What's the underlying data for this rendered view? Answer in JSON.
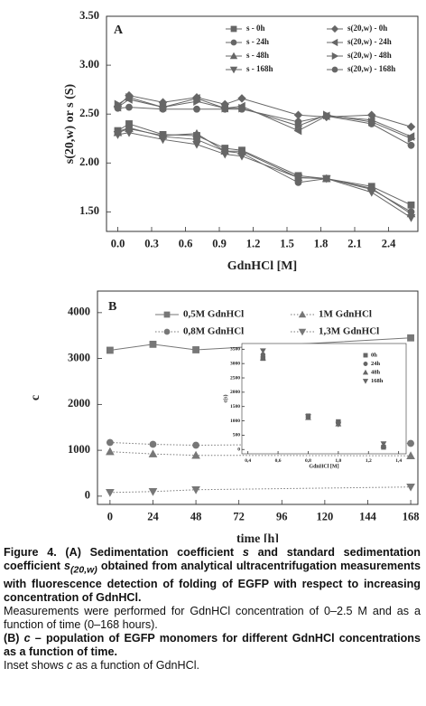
{
  "chart_data": [
    {
      "type": "line",
      "label": "A",
      "xlabel": "GdnHCl [M]",
      "ylabel": "s(20,w) or s (S)",
      "x": [
        0,
        0.1,
        0.4,
        0.7,
        0.95,
        1.1,
        1.6,
        1.85,
        2.25,
        2.6
      ],
      "xlim": [
        -0.1,
        2.66
      ],
      "xticks": [
        {
          "value": 0,
          "label": "0.0"
        },
        0.3,
        0.6,
        0.9,
        1.2,
        1.5,
        1.8,
        2.1,
        2.4
      ],
      "ylim": [
        1.3,
        3.5
      ],
      "yticks": [
        {
          "value": 1.5,
          "label": "1.50"
        },
        {
          "value": 2,
          "label": "2.00"
        },
        {
          "value": 2.5,
          "label": "2.50"
        },
        {
          "value": 3,
          "label": "3.00"
        },
        {
          "value": 3.5,
          "label": "3.50"
        }
      ],
      "legend": "top",
      "legend_columns": 2,
      "series": [
        {
          "name": "s - 0h",
          "color": "#666666",
          "marker": "square",
          "line_style": "solid",
          "values": [
            2.33,
            2.4,
            2.29,
            2.28,
            2.15,
            2.13,
            1.87,
            1.84,
            1.76,
            1.57
          ]
        },
        {
          "name": "s - 24h",
          "color": "#666666",
          "marker": "circle",
          "line_style": "solid",
          "values": [
            2.32,
            2.36,
            2.27,
            2.24,
            2.12,
            2.1,
            1.8,
            1.84,
            1.73,
            1.5
          ]
        },
        {
          "name": "s - 48h",
          "color": "#666666",
          "marker": "triangle-up",
          "line_style": "solid",
          "values": [
            2.31,
            2.35,
            2.28,
            2.3,
            2.12,
            2.12,
            1.85,
            1.84,
            1.74,
            1.48
          ]
        },
        {
          "name": "s - 168h",
          "color": "#666666",
          "marker": "triangle-down",
          "line_style": "solid",
          "values": [
            2.29,
            2.31,
            2.24,
            2.19,
            2.09,
            2.07,
            1.85,
            1.84,
            1.7,
            1.44
          ]
        },
        {
          "name": "s(20,w) - 0h",
          "color": "#666666",
          "marker": "diamond",
          "line_style": "solid",
          "values": [
            2.58,
            2.69,
            2.62,
            2.67,
            2.6,
            2.66,
            2.49,
            2.47,
            2.49,
            2.37
          ]
        },
        {
          "name": "s(20,w) - 24h",
          "color": "#666666",
          "marker": "triangle-left",
          "line_style": "solid",
          "values": [
            2.57,
            2.65,
            2.57,
            2.66,
            2.56,
            2.58,
            2.33,
            2.48,
            2.44,
            2.27
          ]
        },
        {
          "name": "s(20,w) - 48h",
          "color": "#666666",
          "marker": "triangle-right",
          "line_style": "solid",
          "values": [
            2.6,
            2.67,
            2.57,
            2.63,
            2.56,
            2.56,
            2.38,
            2.49,
            2.42,
            2.25
          ]
        },
        {
          "name": "s(20,w) - 168h",
          "color": "#666666",
          "marker": "circle",
          "line_style": "solid",
          "values": [
            2.56,
            2.57,
            2.55,
            2.55,
            2.55,
            2.55,
            2.42,
            2.48,
            2.4,
            2.18
          ]
        }
      ]
    },
    {
      "type": "line",
      "label": "B",
      "xlabel": "time [h]",
      "ylabel": "c",
      "x": [
        0,
        24,
        48,
        168
      ],
      "xlim": [
        -7,
        172
      ],
      "xticks": [
        0,
        24,
        48,
        72,
        96,
        120,
        144,
        168
      ],
      "ylim": [
        -180,
        4470
      ],
      "yticks": [
        0,
        1000,
        2000,
        3000,
        4000
      ],
      "legend": "top",
      "legend_columns": 2,
      "series": [
        {
          "name": "0,5M GdnHCl",
          "color": "#777777",
          "marker": "square",
          "line_style": "solid",
          "values": [
            3180,
            3310,
            3190,
            3450
          ]
        },
        {
          "name": "0,8M GdnHCl",
          "color": "#777777",
          "marker": "circle",
          "line_style": "dotted",
          "values": [
            1170,
            1130,
            1110,
            1150
          ]
        },
        {
          "name": "1M GdnHCl",
          "color": "#777777",
          "marker": "triangle-up",
          "line_style": "dotted",
          "values": [
            970,
            920,
            890,
            880
          ]
        },
        {
          "name": "1,3M GdnHCl",
          "color": "#777777",
          "marker": "triangle-down",
          "line_style": "dotted",
          "values": [
            80,
            100,
            140,
            200
          ]
        }
      ]
    },
    {
      "type": "scatter",
      "xlabel": "GdnHCl [M]",
      "ylabel": "c(s)",
      "x": [
        0.5,
        0.8,
        1.0,
        1.3
      ],
      "xlim": [
        0.36,
        1.45
      ],
      "xticks": [
        {
          "value": 0.4,
          "label": "0,4"
        },
        {
          "value": 0.6,
          "label": "0,6"
        },
        {
          "value": 0.8,
          "label": "0,8"
        },
        {
          "value": 1,
          "label": "1,0"
        },
        {
          "value": 1.2,
          "label": "1,2"
        },
        {
          "value": 1.4,
          "label": "1,4"
        }
      ],
      "ylim": [
        -150,
        3700
      ],
      "yticks": [
        0,
        500,
        1000,
        1500,
        2000,
        2500,
        3000,
        3500
      ],
      "legend": "upper right",
      "legend_columns": 1,
      "series": [
        {
          "name": "0h",
          "color": "#666666",
          "marker": "square",
          "values": [
            3180,
            1170,
            970,
            80
          ]
        },
        {
          "name": "24h",
          "color": "#666666",
          "marker": "circle",
          "values": [
            3310,
            1130,
            920,
            100
          ]
        },
        {
          "name": "48h",
          "color": "#666666",
          "marker": "triangle-up",
          "values": [
            3190,
            1110,
            890,
            140
          ]
        },
        {
          "name": "168h",
          "color": "#666666",
          "marker": "triangle-down",
          "values": [
            3450,
            1150,
            880,
            200
          ]
        }
      ]
    }
  ],
  "caption": {
    "p1": [
      "Figure 4. (A) Sedimentation coefficient ",
      "s",
      " and standard sedimentation coefficient ",
      "s",
      "(20,w)",
      " obtained from analytical ultracentrifugation measurements with fluorescence detection of folding of EGFP with respect to increasing concentration of GdnHCl."
    ],
    "p2": [
      "Measurements were performed for GdnHCl concentration of 0–2.5 M and as a function of time (0–168 hours)."
    ],
    "p3": [
      "(B) ",
      "c",
      " – population of EGFP monomers for different GdnHCl concentrations as a function of time."
    ],
    "p4": [
      "Inset shows ",
      "c",
      " as a function of GdnHCl."
    ]
  }
}
